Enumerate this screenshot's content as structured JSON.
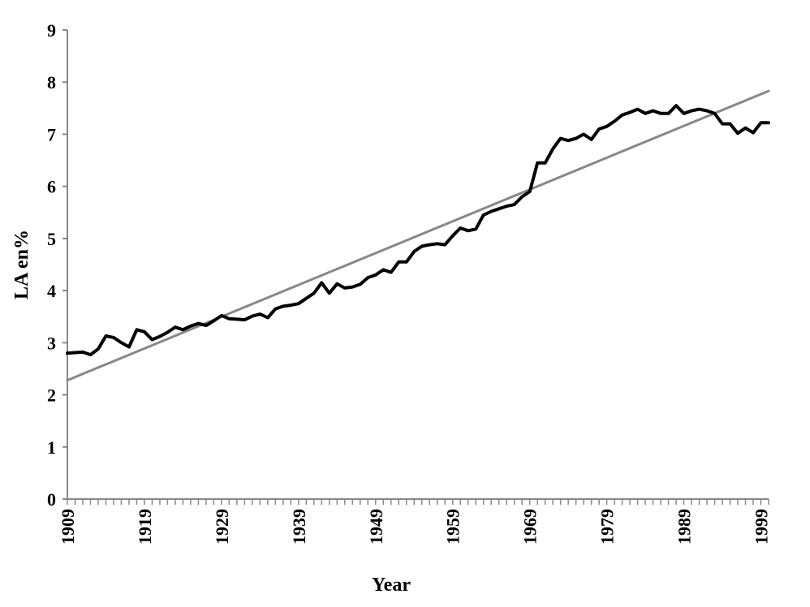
{
  "chart_data": {
    "type": "line",
    "title": "",
    "xlabel": "Year",
    "ylabel": "LA en%",
    "xlim": [
      1909,
      2000
    ],
    "ylim": [
      0,
      9
    ],
    "yticks": [
      0,
      1,
      2,
      3,
      4,
      5,
      6,
      7,
      8,
      9
    ],
    "xticks": [
      1909,
      1919,
      1929,
      1939,
      1949,
      1959,
      1969,
      1979,
      1989,
      1999
    ],
    "grid": false,
    "legend": "none",
    "series": [
      {
        "color": "#000000",
        "x": [
          1909,
          1910,
          1911,
          1912,
          1913,
          1914,
          1915,
          1916,
          1917,
          1918,
          1919,
          1920,
          1921,
          1922,
          1923,
          1924,
          1925,
          1926,
          1927,
          1928,
          1929,
          1930,
          1931,
          1932,
          1933,
          1934,
          1935,
          1936,
          1937,
          1938,
          1939,
          1940,
          1941,
          1942,
          1943,
          1944,
          1945,
          1946,
          1947,
          1948,
          1949,
          1950,
          1951,
          1952,
          1953,
          1954,
          1955,
          1956,
          1957,
          1958,
          1959,
          1960,
          1961,
          1962,
          1963,
          1964,
          1965,
          1966,
          1967,
          1968,
          1969,
          1970,
          1971,
          1972,
          1973,
          1974,
          1975,
          1976,
          1977,
          1978,
          1979,
          1980,
          1981,
          1982,
          1983,
          1984,
          1985,
          1986,
          1987,
          1988,
          1989,
          1990,
          1991,
          1992,
          1993,
          1994,
          1995,
          1996,
          1997,
          1998,
          1999,
          2000
        ],
        "y": [
          2.8,
          2.81,
          2.82,
          2.77,
          2.88,
          3.13,
          3.1,
          3.0,
          2.92,
          3.25,
          3.21,
          3.06,
          3.12,
          3.2,
          3.3,
          3.25,
          3.32,
          3.37,
          3.33,
          3.42,
          3.52,
          3.46,
          3.45,
          3.44,
          3.51,
          3.55,
          3.48,
          3.65,
          3.7,
          3.72,
          3.75,
          3.85,
          3.95,
          4.15,
          3.95,
          4.13,
          4.05,
          4.07,
          4.12,
          4.25,
          4.3,
          4.4,
          4.35,
          4.55,
          4.55,
          4.75,
          4.85,
          4.88,
          4.9,
          4.88,
          5.05,
          5.2,
          5.15,
          5.18,
          5.45,
          5.52,
          5.57,
          5.62,
          5.65,
          5.8,
          5.9,
          6.45,
          6.45,
          6.72,
          6.92,
          6.88,
          6.92,
          7.0,
          6.9,
          7.1,
          7.15,
          7.25,
          7.37,
          7.42,
          7.48,
          7.4,
          7.45,
          7.4,
          7.4,
          7.55,
          7.4,
          7.45,
          7.48,
          7.45,
          7.4,
          7.2,
          7.2,
          7.02,
          7.12,
          7.03,
          7.22,
          7.22
        ]
      },
      {
        "color": "#888888",
        "x": [
          1909,
          2000
        ],
        "y": [
          2.28,
          7.83
        ]
      }
    ]
  }
}
